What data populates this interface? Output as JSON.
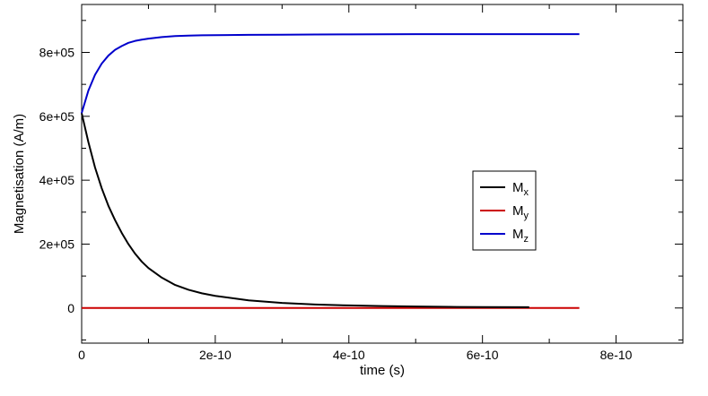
{
  "chart_data": {
    "type": "line",
    "title": "",
    "xlabel": "time (s)",
    "ylabel": "Magnetisation (A/m)",
    "xlim": [
      0,
      9e-10
    ],
    "ylim": [
      -110000,
      950000
    ],
    "x_ticks": [
      {
        "value": 0,
        "label": "0"
      },
      {
        "value": 2e-10,
        "label": "2e-10"
      },
      {
        "value": 4e-10,
        "label": "4e-10"
      },
      {
        "value": 6e-10,
        "label": "6e-10"
      },
      {
        "value": 8e-10,
        "label": "8e-10"
      }
    ],
    "y_ticks": [
      {
        "value": 0,
        "label": "0"
      },
      {
        "value": 200000,
        "label": "2e+05"
      },
      {
        "value": 400000,
        "label": "4e+05"
      },
      {
        "value": 600000,
        "label": "6e+05"
      },
      {
        "value": 800000,
        "label": "8e+05"
      }
    ],
    "grid": false,
    "legend_position": "center-right",
    "series": [
      {
        "name": "M",
        "subscript": "x",
        "color": "#000000",
        "x": [
          0,
          1e-11,
          2e-11,
          3e-11,
          4e-11,
          5e-11,
          6e-11,
          7e-11,
          8e-11,
          9e-11,
          1e-10,
          1.2e-10,
          1.4e-10,
          1.6e-10,
          1.8e-10,
          2e-10,
          2.5e-10,
          3e-10,
          3.5e-10,
          4e-10,
          4.5e-10,
          5e-10,
          5.5e-10,
          6e-10,
          6.7e-10
        ],
        "y": [
          610000,
          520000,
          440000,
          375000,
          320000,
          275000,
          235000,
          200000,
          170000,
          145000,
          125000,
          95000,
          72000,
          57000,
          46000,
          38000,
          24000,
          16000,
          11000,
          8000,
          6000,
          4500,
          3500,
          3000,
          2500
        ]
      },
      {
        "name": "M",
        "subscript": "y",
        "color": "#cc0000",
        "x": [
          0,
          1e-10,
          2e-10,
          3e-10,
          4e-10,
          5e-10,
          6e-10,
          7e-10,
          7.45e-10
        ],
        "y": [
          0,
          0,
          0,
          0,
          0,
          0,
          0,
          0,
          0
        ]
      },
      {
        "name": "M",
        "subscript": "z",
        "color": "#0000cc",
        "x": [
          0,
          1e-11,
          2e-11,
          3e-11,
          4e-11,
          5e-11,
          6e-11,
          7e-11,
          8e-11,
          9e-11,
          1e-10,
          1.2e-10,
          1.4e-10,
          1.6e-10,
          1.8e-10,
          2e-10,
          2.5e-10,
          3e-10,
          3.5e-10,
          4e-10,
          5e-10,
          6e-10,
          7e-10,
          7.45e-10
        ],
        "y": [
          610000,
          680000,
          730000,
          765000,
          790000,
          808000,
          820000,
          830000,
          836000,
          840000,
          843000,
          848000,
          851000,
          852500,
          853500,
          854000,
          855000,
          855500,
          856000,
          856500,
          857000,
          857000,
          857000,
          857000
        ]
      }
    ]
  }
}
